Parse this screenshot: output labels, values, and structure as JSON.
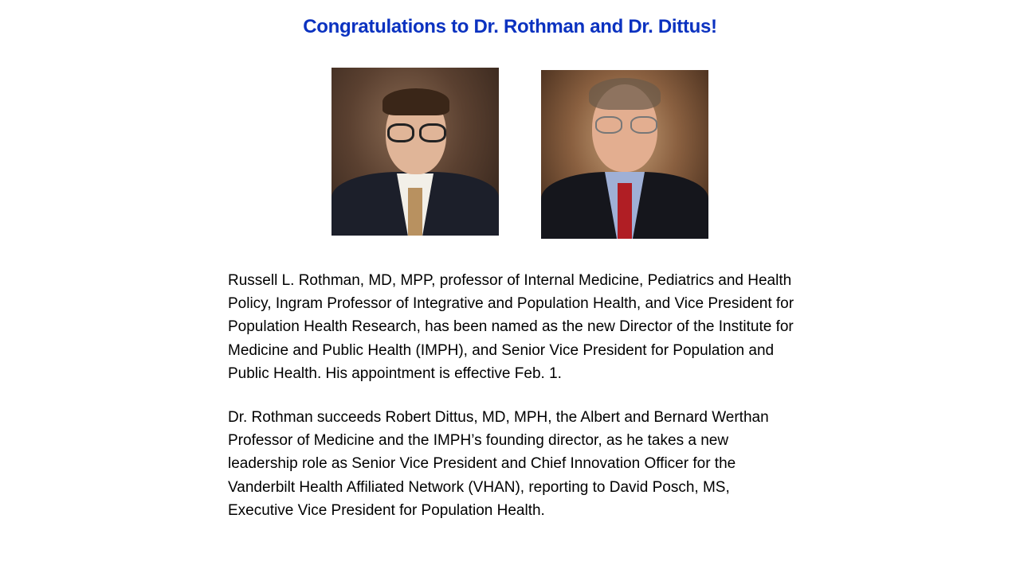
{
  "title": "Congratulations to Dr. Rothman and Dr. Dittus!",
  "photos": [
    {
      "subject": "Dr. Rothman portrait"
    },
    {
      "subject": "Dr. Dittus portrait"
    }
  ],
  "paragraphs": [
    {
      "lines": [
        "Russell L. Rothman, MD, MPP, professor of Internal Medicine, Pediatrics and Health",
        "Policy, Ingram Professor of Integrative and Population Health, and Vice President for",
        "Population Health Research, has been named as the new Director of the Institute for",
        "Medicine and Public Health (IMPH), and Senior Vice President for Population and",
        "Public Health. His appointment is effective Feb. 1."
      ]
    },
    {
      "lines": [
        "Dr. Rothman succeeds Robert Dittus, MD, MPH, the Albert and Bernard Werthan",
        "Professor of Medicine and the IMPH’s founding director, as he takes a new",
        "leadership role as Senior Vice President and Chief Innovation Officer for the",
        "Vanderbilt Health Affiliated Network (VHAN), reporting to David Posch, MS,",
        "Executive Vice President for Population Health."
      ]
    }
  ],
  "colors": {
    "title": "#0b32c0"
  }
}
